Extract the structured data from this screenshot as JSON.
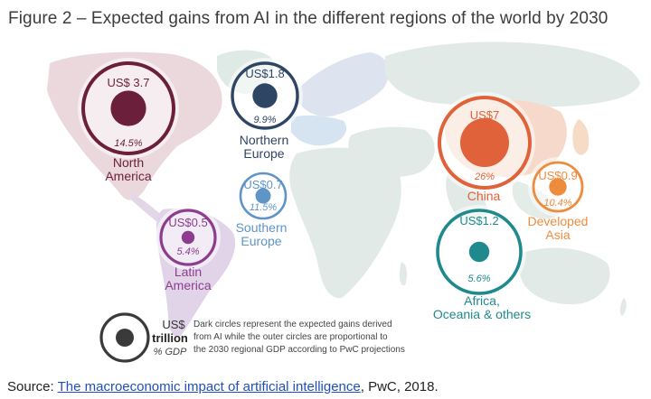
{
  "figure": {
    "title": "Figure 2 – Expected gains from AI in the different regions of the world by 2030"
  },
  "chart_data": {
    "type": "bubble-map",
    "title": "Figure 2 – Expected gains from AI in the different regions of the world by 2030",
    "value_unit": "US$ trillion",
    "regions": [
      {
        "id": "north-america",
        "name_lines": [
          "North",
          "America"
        ],
        "value": 3.7,
        "value_label": "US$ 3.7",
        "gdp_pct": 14.5,
        "gdp_label": "14.5%",
        "color": "#6b1f3a"
      },
      {
        "id": "northern-europe",
        "name_lines": [
          "Northern",
          "Europe"
        ],
        "value": 1.8,
        "value_label": "US$1.8",
        "gdp_pct": 9.9,
        "gdp_label": "9.9%",
        "color": "#2f4564"
      },
      {
        "id": "southern-europe",
        "name_lines": [
          "Southern",
          "Europe"
        ],
        "value": 0.7,
        "value_label": "US$0.7",
        "gdp_pct": 11.5,
        "gdp_label": "11.5%",
        "color": "#5f94c6"
      },
      {
        "id": "latin-america",
        "name_lines": [
          "Latin",
          "America"
        ],
        "value": 0.5,
        "value_label": "US$0.5",
        "gdp_pct": 5.4,
        "gdp_label": "5.4%",
        "color": "#8e3d8e"
      },
      {
        "id": "china",
        "name_lines": [
          "China"
        ],
        "value": 7.0,
        "value_label": "US$7",
        "gdp_pct": 26,
        "gdp_label": "26%",
        "color": "#e0623a"
      },
      {
        "id": "developed-asia",
        "name_lines": [
          "Developed",
          "Asia"
        ],
        "value": 0.9,
        "value_label": "US$0.9",
        "gdp_pct": 10.4,
        "gdp_label": "10.4%",
        "color": "#ee8c3e"
      },
      {
        "id": "africa-oceania",
        "name_lines": [
          "Africa,",
          "Oceania & others"
        ],
        "value": 1.2,
        "value_label": "US$1.2",
        "gdp_pct": 5.6,
        "gdp_label": "5.6%",
        "color": "#1f8a8e"
      }
    ],
    "legend": {
      "value_label": "US$",
      "unit_label": "trillion",
      "pct_label": "% GDP",
      "note_lines": [
        "Dark circles represent the expected gains derived",
        "from AI while the outer circles are proportional to",
        "the 2030 regional GDP according to PwC projections"
      ]
    }
  },
  "source": {
    "prefix": "Source: ",
    "link_text": "The macroeconomic impact of artificial intelligence",
    "suffix": ", PwC, 2018."
  }
}
